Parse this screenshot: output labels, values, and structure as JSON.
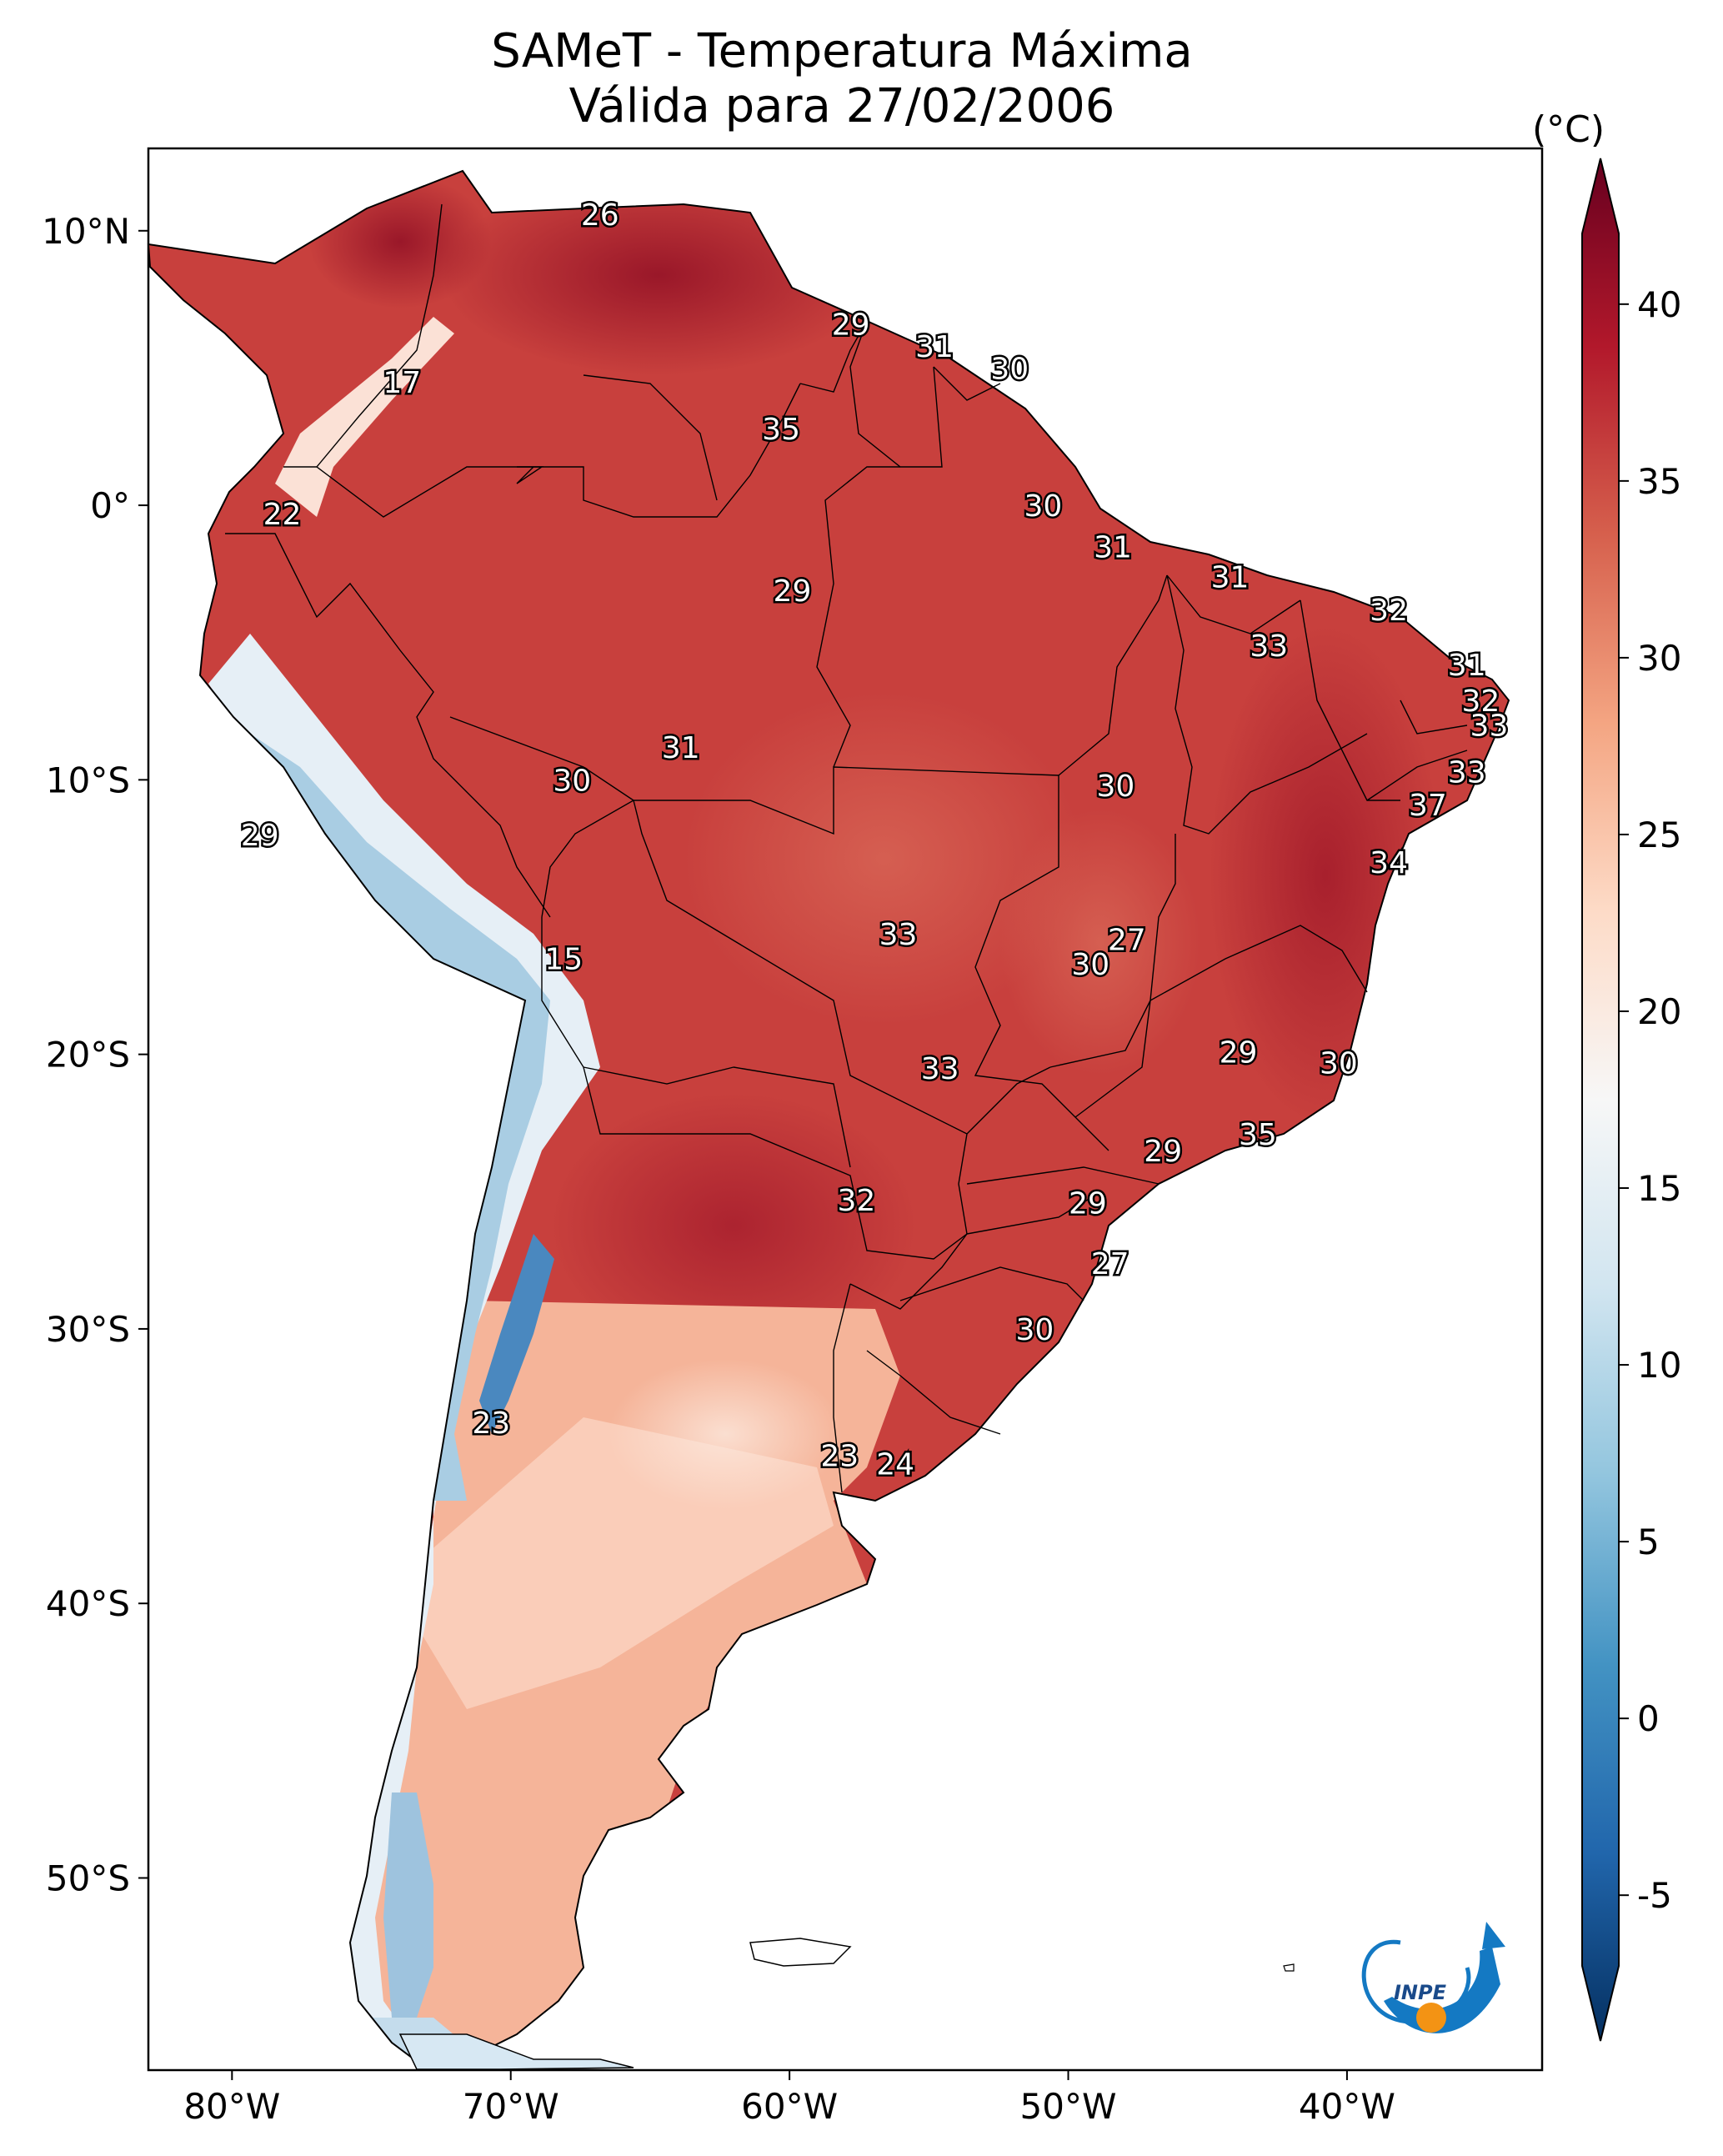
{
  "title": {
    "line1": "SAMeT - Temperatura Máxima",
    "line2": "Válida para 27/02/2006"
  },
  "map": {
    "region": "South America",
    "lon_range": [
      -83,
      -33
    ],
    "lat_range": [
      -57,
      13
    ],
    "lon_ticks": [
      {
        "value": -80,
        "label": "80°W"
      },
      {
        "value": -70,
        "label": "70°W"
      },
      {
        "value": -60,
        "label": "60°W"
      },
      {
        "value": -50,
        "label": "50°W"
      },
      {
        "value": -40,
        "label": "40°W"
      }
    ],
    "lat_ticks": [
      {
        "value": 10,
        "label": "10°N"
      },
      {
        "value": 0,
        "label": "0°"
      },
      {
        "value": -10,
        "label": "10°S"
      },
      {
        "value": -20,
        "label": "20°S"
      },
      {
        "value": -30,
        "label": "30°S"
      },
      {
        "value": -40,
        "label": "40°S"
      },
      {
        "value": -50,
        "label": "50°S"
      }
    ],
    "station_labels": [
      {
        "label": "26",
        "lon": -66.8,
        "lat": 10.6
      },
      {
        "label": "29",
        "lon": -57.8,
        "lat": 6.6
      },
      {
        "label": "31",
        "lon": -54.8,
        "lat": 5.8
      },
      {
        "label": "30",
        "lon": -52.1,
        "lat": 5.0
      },
      {
        "label": "17",
        "lon": -73.9,
        "lat": 4.5
      },
      {
        "label": "35",
        "lon": -60.3,
        "lat": 2.8
      },
      {
        "label": "22",
        "lon": -78.2,
        "lat": -0.3
      },
      {
        "label": "30",
        "lon": -50.9,
        "lat": 0.0
      },
      {
        "label": "31",
        "lon": -48.4,
        "lat": -1.5
      },
      {
        "label": "31",
        "lon": -44.2,
        "lat": -2.6
      },
      {
        "label": "29",
        "lon": -59.9,
        "lat": -3.1
      },
      {
        "label": "32",
        "lon": -38.5,
        "lat": -3.8
      },
      {
        "label": "33",
        "lon": -42.8,
        "lat": -5.1
      },
      {
        "label": "31",
        "lon": -35.7,
        "lat": -5.8
      },
      {
        "label": "32",
        "lon": -35.2,
        "lat": -7.1
      },
      {
        "label": "33",
        "lon": -34.9,
        "lat": -8.0
      },
      {
        "label": "31",
        "lon": -63.9,
        "lat": -8.8
      },
      {
        "label": "33",
        "lon": -35.7,
        "lat": -9.7
      },
      {
        "label": "30",
        "lon": -67.8,
        "lat": -10.0
      },
      {
        "label": "30",
        "lon": -48.3,
        "lat": -10.2
      },
      {
        "label": "37",
        "lon": -37.1,
        "lat": -10.9
      },
      {
        "label": "29",
        "lon": -79.0,
        "lat": -12.0
      },
      {
        "label": "34",
        "lon": -38.5,
        "lat": -13.0
      },
      {
        "label": "33",
        "lon": -56.1,
        "lat": -15.6
      },
      {
        "label": "27",
        "lon": -47.9,
        "lat": -15.8
      },
      {
        "label": "15",
        "lon": -68.1,
        "lat": -16.5
      },
      {
        "label": "30",
        "lon": -49.2,
        "lat": -16.7
      },
      {
        "label": "29",
        "lon": -43.9,
        "lat": -19.9
      },
      {
        "label": "30",
        "lon": -40.3,
        "lat": -20.3
      },
      {
        "label": "33",
        "lon": -54.6,
        "lat": -20.5
      },
      {
        "label": "35",
        "lon": -43.2,
        "lat": -22.9
      },
      {
        "label": "29",
        "lon": -46.6,
        "lat": -23.5
      },
      {
        "label": "32",
        "lon": -57.6,
        "lat": -25.3
      },
      {
        "label": "29",
        "lon": -49.3,
        "lat": -25.4
      },
      {
        "label": "27",
        "lon": -48.5,
        "lat": -27.6
      },
      {
        "label": "30",
        "lon": -51.2,
        "lat": -30.0
      },
      {
        "label": "23",
        "lon": -70.7,
        "lat": -33.4
      },
      {
        "label": "23",
        "lon": -58.2,
        "lat": -34.6
      },
      {
        "label": "24",
        "lon": -56.2,
        "lat": -34.9
      }
    ]
  },
  "colorbar": {
    "unit": "(°C)",
    "min": -7,
    "max": 42,
    "colors": [
      "#053061",
      "#2166ac",
      "#4393c3",
      "#92c5de",
      "#d1e5f0",
      "#f7f7f7",
      "#fddbc7",
      "#f4a582",
      "#d6604d",
      "#b2182b",
      "#67001f"
    ],
    "ticks": [
      {
        "value": -5,
        "label": "-5"
      },
      {
        "value": 0,
        "label": "0"
      },
      {
        "value": 5,
        "label": "5"
      },
      {
        "value": 10,
        "label": "10"
      },
      {
        "value": 15,
        "label": "15"
      },
      {
        "value": 20,
        "label": "20"
      },
      {
        "value": 25,
        "label": "25"
      },
      {
        "value": 30,
        "label": "30"
      },
      {
        "value": 35,
        "label": "35"
      },
      {
        "value": 40,
        "label": "40"
      }
    ]
  },
  "logo": {
    "text": "INPE"
  }
}
